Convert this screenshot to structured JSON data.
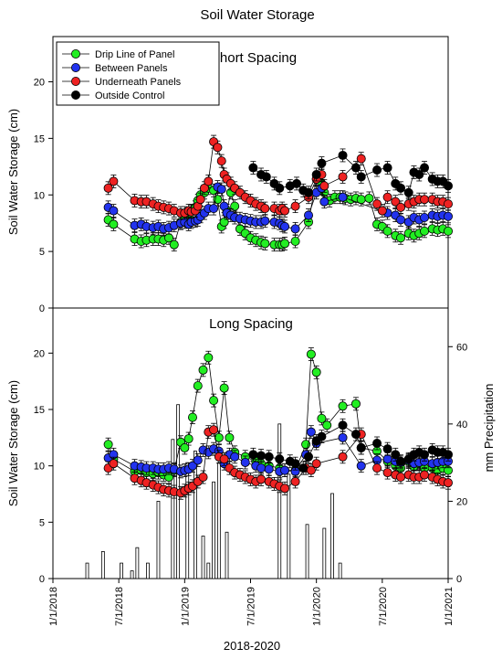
{
  "figure": {
    "title": "Soil Water Storage",
    "xlabel": "2018-2020",
    "ylabel_left": "Soil Water Storage (cm)",
    "ylabel_right": "mm Precipitation",
    "x_ticks": [
      "1/1/2018",
      "7/1/2018",
      "1/1/2019",
      "7/1/2019",
      "1/1/2020",
      "7/1/2020",
      "1/1/2021"
    ],
    "colors": {
      "drip": "#22ee22",
      "between": "#2233ee",
      "underneath": "#ee2222",
      "control": "#000000",
      "bars": "#ffffff"
    }
  },
  "chart_data": [
    {
      "type": "scatter",
      "title": "Short Spacing",
      "ylabel": "Soil Water Storage (cm)",
      "ylim": [
        0,
        24
      ],
      "yticks": [
        0,
        5,
        10,
        15,
        20
      ],
      "legend": "top-left",
      "series": [
        {
          "name": "Drip Line of Panel",
          "color": "#22ee22",
          "x": [
            0.42,
            0.46,
            0.62,
            0.67,
            0.71,
            0.76,
            0.8,
            0.84,
            0.88,
            0.92,
            0.97,
            1.0,
            1.03,
            1.05,
            1.08,
            1.1,
            1.12,
            1.15,
            1.18,
            1.22,
            1.25,
            1.28,
            1.3,
            1.32,
            1.35,
            1.38,
            1.42,
            1.46,
            1.5,
            1.54,
            1.58,
            1.61,
            1.68,
            1.72,
            1.74,
            1.76,
            1.84,
            1.94,
            2.0,
            2.04,
            2.06,
            2.1,
            2.14,
            2.18,
            2.22,
            2.26,
            2.3,
            2.34,
            2.4,
            2.46,
            2.5,
            2.54,
            2.6,
            2.64,
            2.7,
            2.74,
            2.78,
            2.82,
            2.88,
            2.92,
            2.96,
            3.0
          ],
          "y": [
            7.8,
            7.4,
            6.1,
            5.9,
            6.0,
            6.1,
            6.1,
            6.0,
            6.2,
            5.6,
            7.6,
            7.8,
            8.1,
            8.6,
            8.9,
            9.5,
            10.0,
            10.2,
            10.6,
            10.4,
            9.6,
            7.2,
            7.6,
            8.6,
            10.2,
            9.0,
            7.0,
            6.6,
            6.2,
            6.0,
            5.8,
            5.7,
            5.6,
            5.6,
            5.6,
            5.7,
            5.9,
            7.6,
            11.4,
            11.0,
            10.2,
            9.5,
            9.8,
            9.8,
            9.7,
            9.6,
            9.7,
            9.6,
            9.7,
            7.4,
            7.2,
            6.8,
            6.4,
            6.2,
            6.6,
            6.4,
            6.6,
            6.8,
            7.0,
            6.9,
            7.0,
            6.8
          ]
        },
        {
          "name": "Between Panels",
          "color": "#2233ee",
          "x": [
            0.42,
            0.46,
            0.62,
            0.67,
            0.71,
            0.76,
            0.8,
            0.84,
            0.88,
            0.92,
            0.97,
            1.0,
            1.03,
            1.05,
            1.08,
            1.1,
            1.12,
            1.15,
            1.18,
            1.22,
            1.25,
            1.28,
            1.3,
            1.32,
            1.35,
            1.38,
            1.42,
            1.46,
            1.5,
            1.54,
            1.58,
            1.61,
            1.68,
            1.72,
            1.74,
            1.76,
            1.84,
            1.94,
            2.0,
            2.04,
            2.06,
            2.2,
            2.54,
            2.6,
            2.64,
            2.7,
            2.74,
            2.78,
            2.82,
            2.88,
            2.92,
            2.96,
            3.0
          ],
          "y": [
            8.9,
            8.6,
            7.3,
            7.4,
            7.2,
            7.1,
            7.2,
            7.0,
            7.1,
            7.3,
            7.5,
            7.6,
            7.4,
            7.6,
            7.7,
            7.8,
            8.1,
            8.4,
            8.8,
            8.8,
            10.7,
            10.5,
            9.0,
            8.4,
            8.2,
            8.0,
            7.9,
            7.8,
            7.7,
            7.6,
            7.6,
            7.7,
            7.6,
            7.5,
            7.3,
            7.2,
            7.0,
            8.2,
            10.2,
            10.6,
            9.4,
            9.8,
            8.4,
            8.2,
            7.8,
            7.6,
            8.0,
            7.8,
            8.0,
            8.2,
            8.1,
            8.2,
            8.1
          ]
        },
        {
          "name": "Underneath Panels",
          "color": "#ee2222",
          "x": [
            0.42,
            0.46,
            0.62,
            0.67,
            0.71,
            0.76,
            0.8,
            0.84,
            0.88,
            0.92,
            0.97,
            1.0,
            1.03,
            1.05,
            1.08,
            1.1,
            1.12,
            1.15,
            1.18,
            1.22,
            1.25,
            1.28,
            1.3,
            1.32,
            1.35,
            1.38,
            1.42,
            1.46,
            1.5,
            1.54,
            1.58,
            1.61,
            1.68,
            1.72,
            1.74,
            1.76,
            1.84,
            1.94,
            2.0,
            2.04,
            2.06,
            2.2,
            2.34,
            2.46,
            2.5,
            2.54,
            2.6,
            2.64,
            2.7,
            2.74,
            2.78,
            2.82,
            2.88,
            2.92,
            2.96,
            3.0
          ],
          "y": [
            10.6,
            11.2,
            9.5,
            9.4,
            9.4,
            9.2,
            9.0,
            8.9,
            8.8,
            8.6,
            8.4,
            8.4,
            8.6,
            8.5,
            8.6,
            9.0,
            9.6,
            10.6,
            11.2,
            14.7,
            14.2,
            13.0,
            11.8,
            11.4,
            11.0,
            10.6,
            10.2,
            9.8,
            9.5,
            9.2,
            9.0,
            8.8,
            8.8,
            8.6,
            8.8,
            8.6,
            9.0,
            9.8,
            11.4,
            11.8,
            10.8,
            11.6,
            13.2,
            9.2,
            8.6,
            9.8,
            9.4,
            8.9,
            9.2,
            9.4,
            9.6,
            9.6,
            9.6,
            9.4,
            9.4,
            9.2
          ]
        },
        {
          "name": "Outside Control",
          "color": "#000000",
          "x": [
            1.52,
            1.58,
            1.62,
            1.68,
            1.72,
            1.8,
            1.85,
            1.9,
            1.94,
            2.0,
            2.04,
            2.2,
            2.3,
            2.34,
            2.46,
            2.54,
            2.6,
            2.64,
            2.7,
            2.74,
            2.78,
            2.82,
            2.88,
            2.92,
            2.96,
            3.0
          ],
          "y": [
            12.4,
            11.8,
            11.6,
            11.0,
            10.6,
            10.8,
            11.0,
            10.4,
            10.2,
            11.8,
            12.8,
            13.5,
            12.4,
            11.6,
            12.2,
            12.4,
            11.0,
            10.6,
            10.2,
            12.0,
            11.8,
            12.4,
            11.4,
            11.2,
            11.2,
            10.8
          ]
        }
      ]
    },
    {
      "type": "scatter",
      "title": "Long Spacing",
      "ylabel": "Soil Water Storage (cm)",
      "y2label": "mm Precipitation",
      "ylim": [
        0,
        24
      ],
      "y2lim": [
        0,
        70
      ],
      "yticks": [
        0,
        5,
        10,
        15,
        20
      ],
      "y2ticks": [
        0,
        20,
        40,
        60
      ],
      "series": [
        {
          "name": "Drip Line of Panel",
          "color": "#22ee22",
          "x": [
            0.42,
            0.46,
            0.62,
            0.67,
            0.71,
            0.76,
            0.8,
            0.84,
            0.88,
            0.92,
            0.97,
            1.0,
            1.03,
            1.06,
            1.1,
            1.14,
            1.18,
            1.22,
            1.26,
            1.3,
            1.34,
            1.38,
            1.46,
            1.54,
            1.58,
            1.64,
            1.72,
            1.76,
            1.84,
            1.92,
            1.96,
            2.0,
            2.04,
            2.08,
            2.2,
            2.3,
            2.34,
            2.46,
            2.54,
            2.6,
            2.64,
            2.7,
            2.74,
            2.78,
            2.82,
            2.88,
            2.92,
            2.96,
            3.0
          ],
          "y": [
            11.9,
            10.6,
            9.5,
            9.6,
            9.4,
            9.3,
            9.4,
            9.2,
            9.0,
            9.6,
            12.1,
            11.6,
            12.4,
            14.3,
            17.1,
            18.5,
            19.6,
            15.8,
            12.5,
            16.9,
            12.5,
            11.2,
            10.8,
            10.4,
            10.2,
            10.0,
            9.8,
            9.6,
            9.6,
            11.9,
            19.9,
            18.3,
            14.2,
            13.6,
            15.3,
            15.5,
            11.6,
            11.3,
            10.4,
            10.0,
            9.8,
            10.4,
            9.9,
            10.2,
            9.8,
            9.8,
            9.6,
            9.8,
            9.6
          ]
        },
        {
          "name": "Between Panels",
          "color": "#2233ee",
          "x": [
            0.42,
            0.46,
            0.62,
            0.67,
            0.71,
            0.76,
            0.8,
            0.84,
            0.88,
            0.92,
            0.97,
            1.0,
            1.03,
            1.06,
            1.1,
            1.14,
            1.18,
            1.22,
            1.26,
            1.3,
            1.34,
            1.38,
            1.46,
            1.54,
            1.58,
            1.64,
            1.72,
            1.76,
            1.84,
            1.92,
            1.96,
            2.0,
            2.2,
            2.34,
            2.46,
            2.54,
            2.6,
            2.64,
            2.7,
            2.74,
            2.78,
            2.82,
            2.88,
            2.92,
            2.96,
            3.0
          ],
          "y": [
            10.7,
            11.0,
            10.0,
            9.9,
            9.8,
            9.8,
            9.7,
            9.7,
            9.8,
            9.7,
            9.5,
            9.6,
            9.7,
            10.0,
            10.5,
            11.4,
            11.2,
            11.5,
            11.3,
            10.2,
            11.0,
            10.8,
            10.3,
            10.0,
            9.8,
            9.7,
            9.5,
            9.6,
            9.5,
            11.0,
            13.0,
            12.0,
            12.5,
            10.0,
            10.5,
            10.6,
            10.4,
            10.3,
            10.5,
            10.2,
            10.3,
            10.4,
            10.2,
            10.3,
            10.4,
            10.4
          ]
        },
        {
          "name": "Underneath Panels",
          "color": "#ee2222",
          "x": [
            0.42,
            0.46,
            0.62,
            0.67,
            0.71,
            0.76,
            0.8,
            0.84,
            0.88,
            0.92,
            0.97,
            1.0,
            1.03,
            1.06,
            1.1,
            1.14,
            1.18,
            1.22,
            1.26,
            1.3,
            1.34,
            1.38,
            1.42,
            1.46,
            1.5,
            1.54,
            1.58,
            1.64,
            1.68,
            1.72,
            1.76,
            1.84,
            1.92,
            1.96,
            2.0,
            2.2,
            2.34,
            2.46,
            2.54,
            2.6,
            2.64,
            2.7,
            2.74,
            2.78,
            2.82,
            2.88,
            2.92,
            2.96,
            3.0
          ],
          "y": [
            9.8,
            10.2,
            8.9,
            8.7,
            8.5,
            8.3,
            8.1,
            7.9,
            7.8,
            7.7,
            7.6,
            7.8,
            8.0,
            8.2,
            8.6,
            9.0,
            13.0,
            13.2,
            10.8,
            10.6,
            9.8,
            9.4,
            9.2,
            9.0,
            8.8,
            8.6,
            8.8,
            8.6,
            8.4,
            8.2,
            8.0,
            8.6,
            9.8,
            9.6,
            10.2,
            10.8,
            12.8,
            9.8,
            9.4,
            9.2,
            9.0,
            9.2,
            9.0,
            9.0,
            9.2,
            9.0,
            8.8,
            8.6,
            8.5
          ]
        },
        {
          "name": "Outside Control",
          "color": "#000000",
          "x": [
            1.52,
            1.58,
            1.64,
            1.72,
            1.8,
            1.84,
            1.9,
            1.94,
            2.0,
            2.04,
            2.2,
            2.3,
            2.34,
            2.46,
            2.54,
            2.6,
            2.64,
            2.7,
            2.74,
            2.78,
            2.82,
            2.88,
            2.92,
            2.96,
            3.0
          ],
          "y": [
            11.0,
            10.9,
            10.8,
            10.6,
            10.4,
            10.2,
            9.8,
            10.8,
            12.2,
            12.6,
            13.6,
            12.8,
            11.6,
            12.0,
            11.5,
            11.0,
            10.4,
            10.6,
            11.0,
            11.2,
            11.0,
            11.4,
            11.2,
            11.2,
            11.0
          ]
        },
        {
          "name": "mm Precipitation",
          "color": "#ffffff",
          "axis": "right",
          "type": "bar",
          "x": [
            0.26,
            0.38,
            0.52,
            0.6,
            0.64,
            0.72,
            0.8,
            0.91,
            0.95,
            1.02,
            1.08,
            1.14,
            1.18,
            1.22,
            1.26,
            1.32,
            1.72,
            1.79,
            1.93,
            2.06,
            2.12,
            2.18
          ],
          "y": [
            4,
            7,
            4,
            2,
            8,
            4,
            20,
            36,
            45,
            30,
            33,
            11,
            4,
            25,
            30,
            12,
            40,
            27,
            14,
            13,
            22,
            4
          ]
        }
      ]
    }
  ]
}
